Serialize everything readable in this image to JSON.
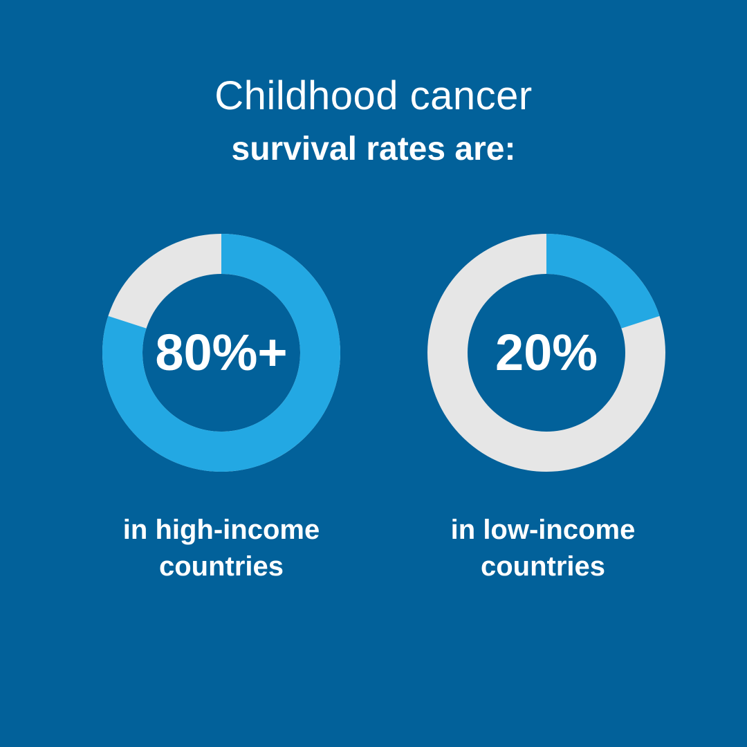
{
  "title": {
    "line1": "Childhood cancer",
    "line2": "survival rates are:"
  },
  "colors": {
    "background": "#02619a",
    "fill": "#23a8e3",
    "track": "#e6e6e6",
    "text": "#ffffff"
  },
  "chart_data": [
    {
      "type": "pie",
      "style": "donut",
      "value_label": "80%+",
      "value_percent": 80,
      "caption_line1": "in high-income",
      "caption_line2": "countries"
    },
    {
      "type": "pie",
      "style": "donut",
      "value_label": "20%",
      "value_percent": 20,
      "caption_line1": "in low-income",
      "caption_line2": "countries"
    }
  ]
}
